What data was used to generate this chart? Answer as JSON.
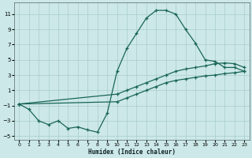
{
  "xlabel": "Humidex (Indice chaleur)",
  "xlim": [
    -0.5,
    23.5
  ],
  "ylim": [
    -5.5,
    12.5
  ],
  "xticks": [
    0,
    1,
    2,
    3,
    4,
    5,
    6,
    7,
    8,
    9,
    10,
    11,
    12,
    13,
    14,
    15,
    16,
    17,
    18,
    19,
    20,
    21,
    22,
    23
  ],
  "yticks": [
    -5,
    -3,
    -1,
    1,
    3,
    5,
    7,
    9,
    11
  ],
  "bg_color": "#cce8e8",
  "grid_color": "#aacccc",
  "line_color": "#1a6655",
  "line1_x": [
    0,
    1,
    2,
    3,
    4,
    5,
    6,
    7,
    8,
    9,
    10,
    11,
    12,
    13,
    14,
    15,
    16,
    17,
    18,
    19,
    20,
    21,
    22,
    23
  ],
  "line1_y": [
    -0.8,
    -1.5,
    -3.0,
    -3.5,
    -3.0,
    -4.0,
    -3.8,
    -4.2,
    -4.5,
    -2.0,
    3.5,
    6.5,
    8.5,
    10.5,
    11.5,
    11.5,
    11.0,
    9.0,
    7.2,
    5.0,
    4.8,
    4.0,
    4.0,
    3.5
  ],
  "line2_x": [
    0,
    10,
    11,
    12,
    13,
    14,
    15,
    16,
    17,
    18,
    19,
    20,
    21,
    22,
    23
  ],
  "line2_y": [
    -0.8,
    0.5,
    1.0,
    1.5,
    2.0,
    2.5,
    3.0,
    3.5,
    3.8,
    4.0,
    4.2,
    4.5,
    4.6,
    4.5,
    4.0
  ],
  "line3_x": [
    0,
    10,
    11,
    12,
    13,
    14,
    15,
    16,
    17,
    18,
    19,
    20,
    21,
    22,
    23
  ],
  "line3_y": [
    -0.8,
    -0.5,
    0.0,
    0.5,
    1.0,
    1.5,
    2.0,
    2.3,
    2.5,
    2.7,
    2.9,
    3.0,
    3.2,
    3.3,
    3.5
  ]
}
